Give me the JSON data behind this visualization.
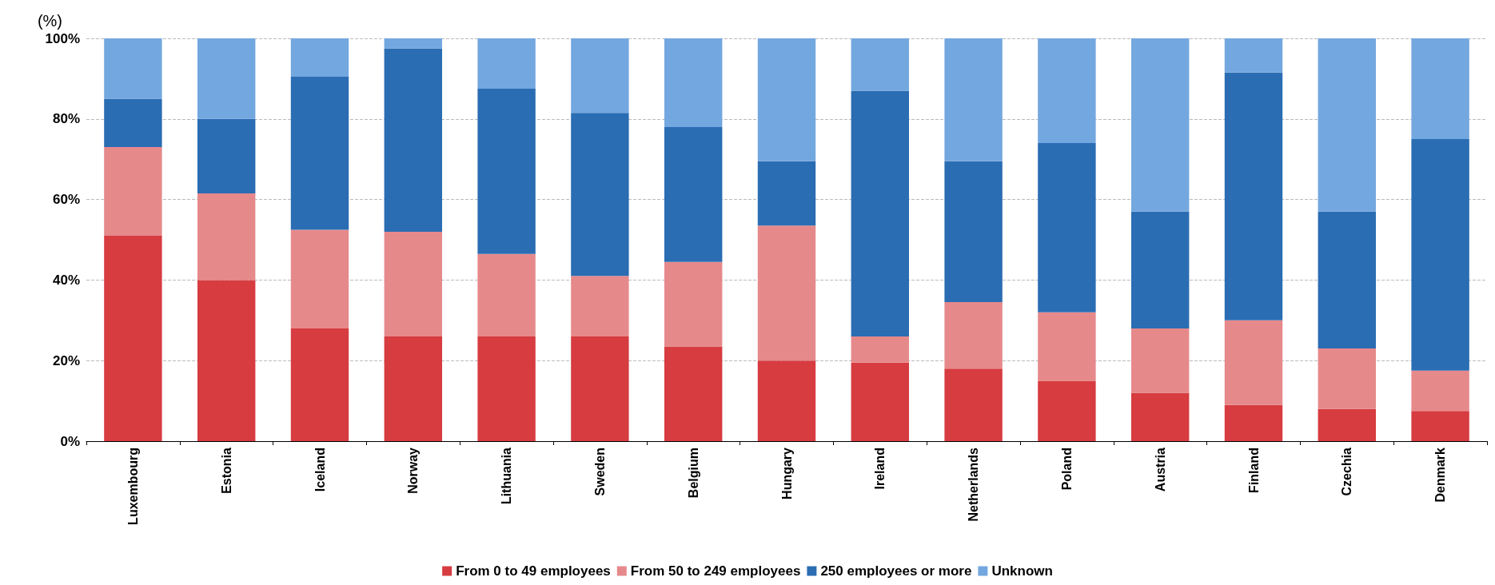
{
  "chart_data": {
    "type": "bar",
    "stacked": true,
    "ylabel": "(%)",
    "categories": [
      "Luxembourg",
      "Estonia",
      "Iceland",
      "Norway",
      "Lithuania",
      "Sweden",
      "Belgium",
      "Hungary",
      "Ireland",
      "Netherlands",
      "Poland",
      "Austria",
      "Finland",
      "Czechia",
      "Denmark"
    ],
    "series": [
      {
        "name": "From 0 to 49 employees",
        "color": "#d63c40",
        "values": [
          51,
          40,
          28,
          26,
          26,
          26,
          23.5,
          20,
          19.5,
          18,
          15,
          12,
          9,
          8,
          7.5
        ]
      },
      {
        "name": "From 50 to 249 employees",
        "color": "#e6898b",
        "values": [
          22,
          21.5,
          24.5,
          26,
          20.5,
          15,
          21,
          33.5,
          6.5,
          16.5,
          17,
          16,
          21,
          15,
          10
        ]
      },
      {
        "name": "250 employees or more",
        "color": "#2a6db3",
        "values": [
          12,
          18.5,
          38,
          45.5,
          41,
          40.5,
          33.5,
          16,
          61,
          35,
          42,
          29,
          61.5,
          34,
          57.5
        ]
      },
      {
        "name": "Unknown",
        "color": "#73a7df",
        "values": [
          15,
          20,
          9.5,
          2.5,
          12.5,
          18.5,
          22,
          30.5,
          13,
          30.5,
          26,
          43,
          8.5,
          43,
          25
        ]
      }
    ],
    "ylim": [
      0,
      100
    ],
    "yticks": [
      {
        "value": 0,
        "label": "0%"
      },
      {
        "value": 20,
        "label": "20%"
      },
      {
        "value": 40,
        "label": "40%"
      },
      {
        "value": 60,
        "label": "60%"
      },
      {
        "value": 80,
        "label": "80%"
      },
      {
        "value": 100,
        "label": "100%"
      }
    ],
    "grid": "y",
    "legend": "bottom"
  }
}
